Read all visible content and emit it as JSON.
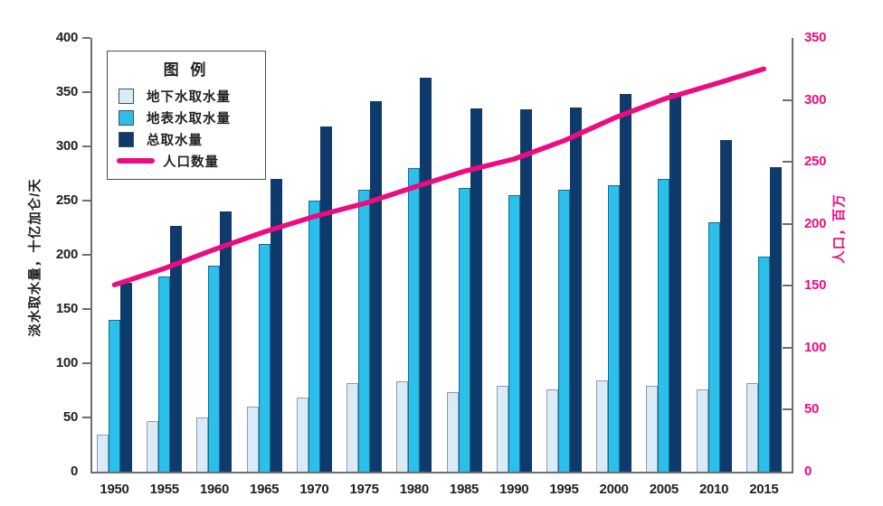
{
  "chart_data": {
    "type": "bar",
    "title": "",
    "categories": [
      "1950",
      "1955",
      "1960",
      "1965",
      "1970",
      "1975",
      "1980",
      "1985",
      "1990",
      "1995",
      "2000",
      "2005",
      "2010",
      "2015"
    ],
    "series": [
      {
        "name": "地下水取水量",
        "type": "bar",
        "axis": "left",
        "color": "#d9ebf7",
        "border": "#8f9ca8",
        "values": [
          34,
          47,
          50,
          60,
          68,
          82,
          83,
          73,
          79,
          76,
          84,
          79,
          76,
          82
        ]
      },
      {
        "name": "地表水取水量",
        "type": "bar",
        "axis": "left",
        "color": "#2bbfe9",
        "border": "#0e6e94",
        "values": [
          140,
          180,
          190,
          210,
          250,
          260,
          280,
          262,
          255,
          260,
          264,
          270,
          230,
          198
        ]
      },
      {
        "name": "总取水量",
        "type": "bar",
        "axis": "left",
        "color": "#0e3a6c",
        "border": "#0e3a6c",
        "values": [
          174,
          227,
          240,
          270,
          318,
          342,
          363,
          335,
          334,
          336,
          348,
          349,
          306,
          281
        ]
      },
      {
        "name": "人口数量",
        "type": "line",
        "axis": "right",
        "color": "#ec0c80",
        "values": [
          150.7,
          164.0,
          179.3,
          193.5,
          205.9,
          216.4,
          229.6,
          242.4,
          252.3,
          267.1,
          285.3,
          300.7,
          312.6,
          325.0
        ]
      }
    ],
    "left_axis": {
      "label": "淡水取水量，十亿加仑/天",
      "min": 0,
      "max": 400,
      "ticks": [
        0,
        50,
        100,
        150,
        200,
        250,
        300,
        350,
        400
      ],
      "color": "#231f20"
    },
    "right_axis": {
      "label": "人口，百万",
      "min": 0,
      "max": 350,
      "ticks": [
        0,
        50,
        100,
        150,
        200,
        250,
        300,
        350
      ],
      "color": "#ec0c80"
    },
    "legend": {
      "title": "图 例",
      "position": "top-left",
      "items": [
        {
          "label": "地下水取水量",
          "swatch": "square"
        },
        {
          "label": "地表水取水量",
          "swatch": "square"
        },
        {
          "label": "总取水量",
          "swatch": "square"
        },
        {
          "label": "人口数量",
          "swatch": "line"
        }
      ]
    },
    "grid": false,
    "xlabel": "",
    "ylabel_left": "淡水取水量，十亿加仑/天",
    "ylabel_right": "人口，百万"
  }
}
